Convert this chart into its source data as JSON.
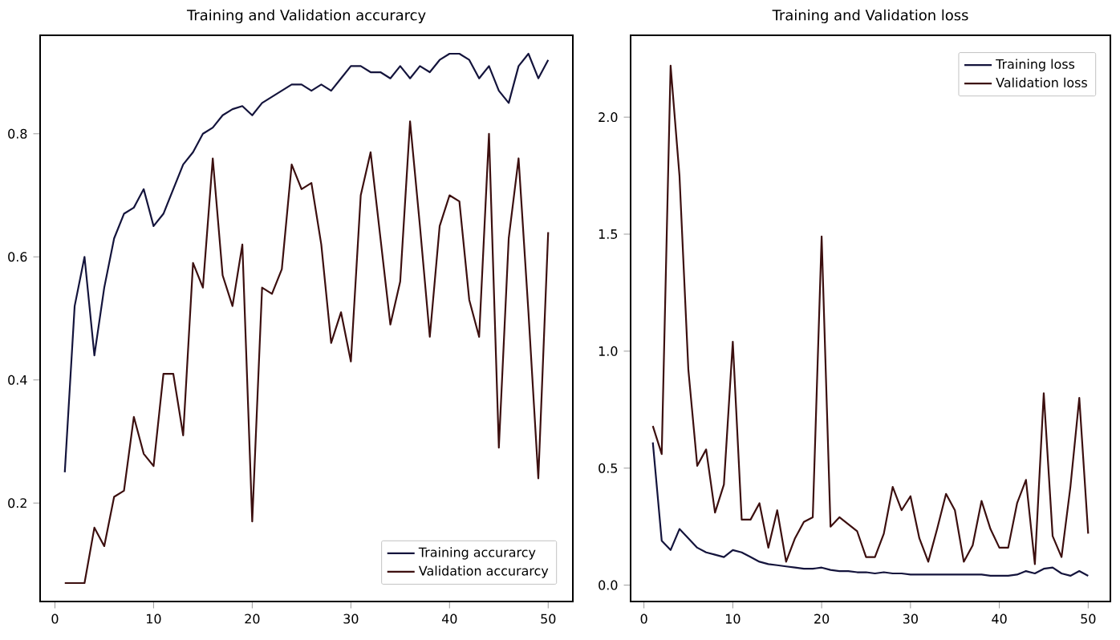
{
  "chart_data": [
    {
      "type": "line",
      "title": "Training and Validation accurarcy",
      "x": [
        1,
        2,
        3,
        4,
        5,
        6,
        7,
        8,
        9,
        10,
        11,
        12,
        13,
        14,
        15,
        16,
        17,
        18,
        19,
        20,
        21,
        22,
        23,
        24,
        25,
        26,
        27,
        28,
        29,
        30,
        31,
        32,
        33,
        34,
        35,
        36,
        37,
        38,
        39,
        40,
        41,
        42,
        43,
        44,
        45,
        46,
        47,
        48,
        49,
        50
      ],
      "series": [
        {
          "name": "Training accurarcy",
          "color": "#14143c",
          "values": [
            0.25,
            0.52,
            0.6,
            0.44,
            0.55,
            0.63,
            0.67,
            0.68,
            0.71,
            0.65,
            0.67,
            0.71,
            0.75,
            0.77,
            0.8,
            0.81,
            0.83,
            0.84,
            0.845,
            0.83,
            0.85,
            0.86,
            0.87,
            0.88,
            0.88,
            0.87,
            0.88,
            0.87,
            0.89,
            0.91,
            0.91,
            0.9,
            0.9,
            0.89,
            0.91,
            0.89,
            0.91,
            0.9,
            0.92,
            0.93,
            0.93,
            0.92,
            0.89,
            0.91,
            0.87,
            0.85,
            0.91,
            0.93,
            0.89,
            0.92
          ]
        },
        {
          "name": "Validation accurarcy",
          "color": "#3c0f0f",
          "values": [
            0.07,
            0.07,
            0.07,
            0.16,
            0.13,
            0.21,
            0.22,
            0.34,
            0.28,
            0.26,
            0.41,
            0.41,
            0.31,
            0.59,
            0.55,
            0.76,
            0.57,
            0.52,
            0.62,
            0.17,
            0.55,
            0.54,
            0.58,
            0.75,
            0.71,
            0.72,
            0.62,
            0.46,
            0.51,
            0.43,
            0.7,
            0.77,
            0.63,
            0.49,
            0.56,
            0.82,
            0.65,
            0.47,
            0.65,
            0.7,
            0.69,
            0.53,
            0.47,
            0.8,
            0.29,
            0.63,
            0.76,
            0.51,
            0.24,
            0.64
          ]
        }
      ],
      "xlim": [
        -1.5,
        52.5
      ],
      "ylim": [
        0.04,
        0.96
      ],
      "xticks": [
        0,
        10,
        20,
        30,
        40,
        50
      ],
      "yticks": [
        0.2,
        0.4,
        0.6,
        0.8
      ],
      "grid": false,
      "legend": "bottom right"
    },
    {
      "type": "line",
      "title": "Training and Validation loss",
      "x": [
        1,
        2,
        3,
        4,
        5,
        6,
        7,
        8,
        9,
        10,
        11,
        12,
        13,
        14,
        15,
        16,
        17,
        18,
        19,
        20,
        21,
        22,
        23,
        24,
        25,
        26,
        27,
        28,
        29,
        30,
        31,
        32,
        33,
        34,
        35,
        36,
        37,
        38,
        39,
        40,
        41,
        42,
        43,
        44,
        45,
        46,
        47,
        48,
        49,
        50
      ],
      "series": [
        {
          "name": "Training loss",
          "color": "#14143c",
          "values": [
            0.61,
            0.19,
            0.15,
            0.24,
            0.2,
            0.16,
            0.14,
            0.13,
            0.12,
            0.15,
            0.14,
            0.12,
            0.1,
            0.09,
            0.085,
            0.08,
            0.075,
            0.07,
            0.07,
            0.075,
            0.065,
            0.06,
            0.06,
            0.055,
            0.055,
            0.05,
            0.055,
            0.05,
            0.05,
            0.045,
            0.045,
            0.045,
            0.045,
            0.045,
            0.045,
            0.045,
            0.045,
            0.045,
            0.04,
            0.04,
            0.04,
            0.045,
            0.06,
            0.05,
            0.07,
            0.075,
            0.05,
            0.04,
            0.06,
            0.04
          ]
        },
        {
          "name": "Validation loss",
          "color": "#3c0f0f",
          "values": [
            0.68,
            0.56,
            2.22,
            1.75,
            0.92,
            0.51,
            0.58,
            0.31,
            0.43,
            1.04,
            0.28,
            0.28,
            0.35,
            0.16,
            0.32,
            0.1,
            0.2,
            0.27,
            0.29,
            1.49,
            0.25,
            0.29,
            0.26,
            0.23,
            0.12,
            0.12,
            0.22,
            0.42,
            0.32,
            0.38,
            0.2,
            0.1,
            0.24,
            0.39,
            0.32,
            0.1,
            0.17,
            0.36,
            0.24,
            0.16,
            0.16,
            0.35,
            0.45,
            0.09,
            0.82,
            0.21,
            0.12,
            0.42,
            0.8,
            0.22
          ]
        }
      ],
      "xlim": [
        -1.5,
        52.5
      ],
      "ylim": [
        -0.07,
        2.35
      ],
      "xticks": [
        0,
        10,
        20,
        30,
        40,
        50
      ],
      "yticks": [
        {
          "value": 0,
          "label": "0.0"
        },
        0.5,
        {
          "value": 1,
          "label": "1.0"
        },
        1.5,
        {
          "value": 2,
          "label": "2.0"
        }
      ],
      "grid": false,
      "legend": "top right"
    }
  ]
}
